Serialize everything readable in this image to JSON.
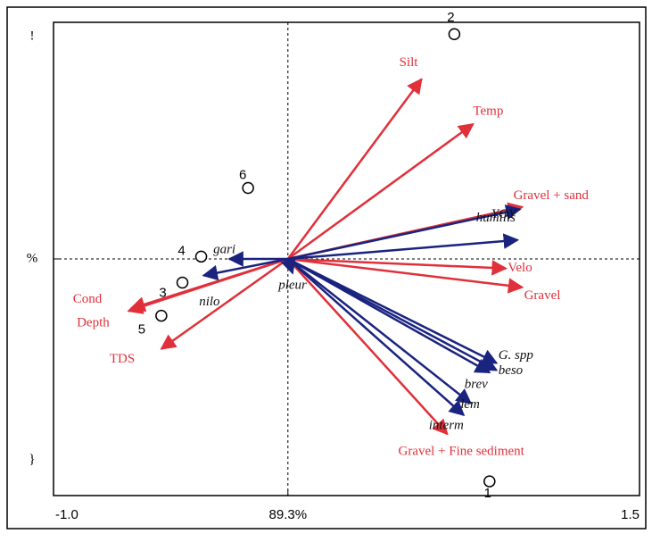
{
  "chart_data": {
    "type": "biplot",
    "xlim": [
      -1.0,
      1.5
    ],
    "ylim": [
      -1.0,
      1.0
    ],
    "xticks": [
      {
        "value": -1.0,
        "label": "-1.0"
      },
      {
        "value": 0,
        "label": "89.3%"
      },
      {
        "value": 1.5,
        "label": "1.5"
      }
    ],
    "yticks": [
      {
        "value": 1.0,
        "label": "!"
      },
      {
        "value": 0,
        "label": "%"
      },
      {
        "value": -1.0,
        "label": "}"
      }
    ],
    "arrow_groups": [
      {
        "color": "#e0303a",
        "vectors": [
          {
            "label": "Silt",
            "x": 0.57,
            "y": 0.76
          },
          {
            "label": "Temp",
            "x": 0.79,
            "y": 0.57
          },
          {
            "label": "Gravel + sand",
            "x": 1.0,
            "y": 0.22
          },
          {
            "label": "Velo",
            "x": 0.93,
            "y": -0.04
          },
          {
            "label": "Gravel",
            "x": 1.0,
            "y": -0.12
          },
          {
            "label": "Gravel + Fine sediment",
            "x": 0.68,
            "y": -0.74
          },
          {
            "label": "Cond",
            "x": -0.67,
            "y": -0.21
          },
          {
            "label": "Depth",
            "x": -0.68,
            "y": -0.22
          },
          {
            "label": "TDS",
            "x": -0.54,
            "y": -0.38
          }
        ]
      },
      {
        "color": "#1a237e",
        "vectors": [
          {
            "label": "humilis",
            "x": 0.99,
            "y": 0.21
          },
          {
            "label": "YOY",
            "x": 0.98,
            "y": 0.08
          },
          {
            "label": "G. spp",
            "x": 0.89,
            "y": -0.44
          },
          {
            "label": "beso",
            "x": 0.89,
            "y": -0.47
          },
          {
            "label": "brev",
            "x": 0.86,
            "y": -0.48
          },
          {
            "label": "dem",
            "x": 0.78,
            "y": -0.61
          },
          {
            "label": "interm",
            "x": 0.75,
            "y": -0.66
          },
          {
            "label": "gari",
            "x": -0.25,
            "y": 0.0
          },
          {
            "label": "nilo",
            "x": -0.36,
            "y": -0.07
          },
          {
            "label": "pleur",
            "x": 0.02,
            "y": -0.06
          }
        ]
      }
    ],
    "points": [
      {
        "label": "2",
        "x": 0.71,
        "y": 0.95
      },
      {
        "label": "6",
        "x": -0.17,
        "y": 0.3
      },
      {
        "label": "4",
        "x": -0.37,
        "y": 0.01
      },
      {
        "label": "3",
        "x": -0.45,
        "y": -0.1
      },
      {
        "label": "5",
        "x": -0.54,
        "y": -0.24
      },
      {
        "label": "1",
        "x": 0.86,
        "y": -0.94
      }
    ]
  }
}
